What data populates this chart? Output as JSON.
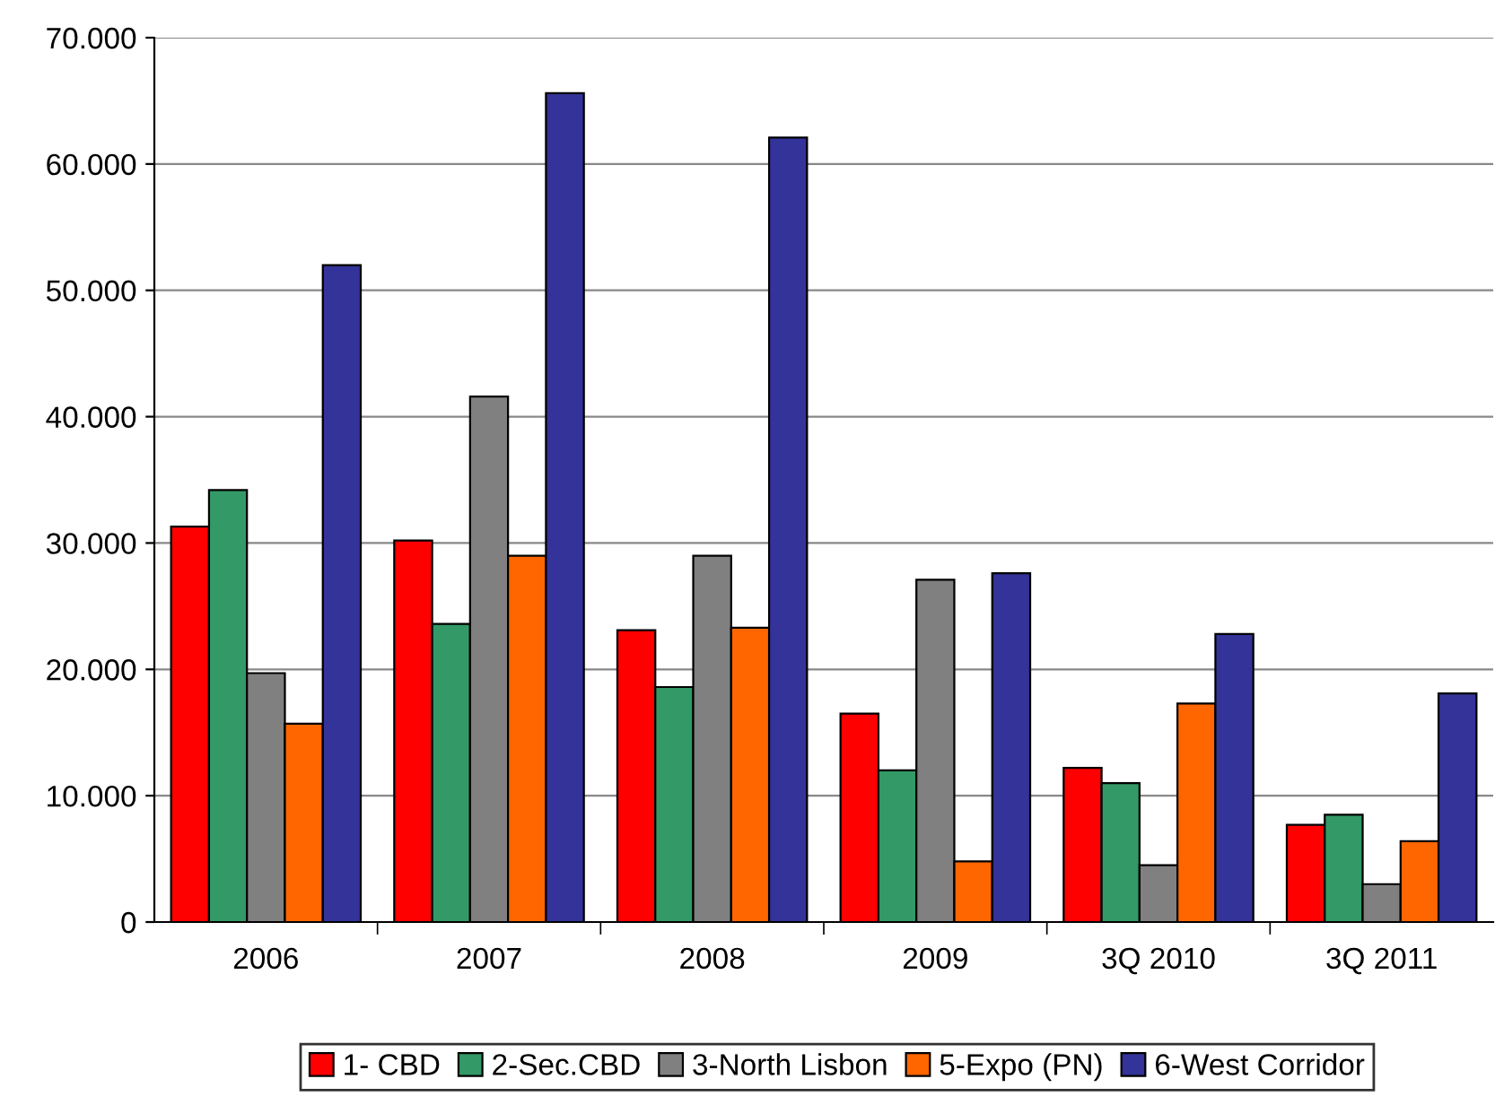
{
  "chart_data": {
    "type": "bar",
    "categories": [
      "2006",
      "2007",
      "2008",
      "2009",
      "3Q 2010",
      "3Q 2011"
    ],
    "series": [
      {
        "name": "1- CBD",
        "color": "#ff0000",
        "values": [
          31300,
          30200,
          23100,
          16500,
          12200,
          7700
        ]
      },
      {
        "name": "2-Sec.CBD",
        "color": "#339966",
        "values": [
          34200,
          23600,
          18600,
          12000,
          11000,
          8500
        ]
      },
      {
        "name": "3-North Lisbon",
        "color": "#808080",
        "values": [
          19700,
          41600,
          29000,
          27100,
          4500,
          3000
        ]
      },
      {
        "name": "5-Expo (PN)",
        "color": "#ff6600",
        "values": [
          15700,
          29000,
          23300,
          4800,
          17300,
          6400
        ]
      },
      {
        "name": "6-West Corridor",
        "color": "#333399",
        "values": [
          52000,
          65600,
          62100,
          27600,
          22800,
          18100
        ]
      }
    ],
    "ylim": [
      0,
      70000
    ],
    "yticks": [
      0,
      {
        "value": 10000,
        "label": "10.000"
      },
      {
        "value": 20000,
        "label": "20.000"
      },
      {
        "value": 30000,
        "label": "30.000"
      },
      {
        "value": 40000,
        "label": "40.000"
      },
      {
        "value": 50000,
        "label": "50.000"
      },
      {
        "value": 60000,
        "label": "60.000"
      },
      {
        "value": 70000,
        "label": "70.000"
      }
    ],
    "grid": "y",
    "legend": "bottom"
  }
}
